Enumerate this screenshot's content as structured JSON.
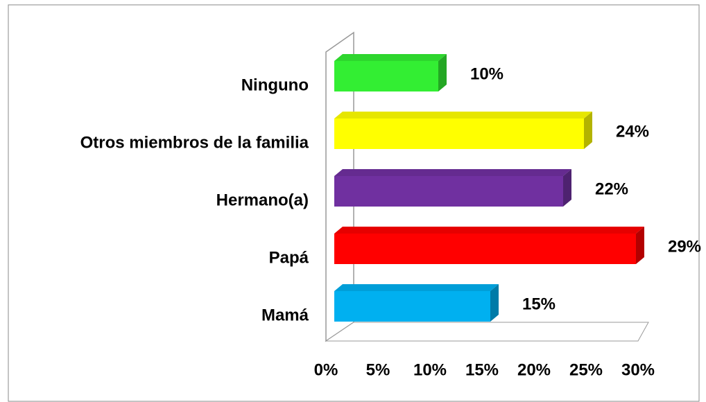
{
  "chart_data": {
    "type": "bar",
    "orientation": "horizontal",
    "categories": [
      "Ninguno",
      "Otros miembros de la familia",
      "Hermano(a)",
      "Papá",
      "Mamá"
    ],
    "values": [
      10,
      24,
      22,
      29,
      15
    ],
    "value_labels": [
      "10%",
      "24%",
      "22%",
      "29%",
      "15%"
    ],
    "colors": [
      "#33ee33",
      "#ffff00",
      "#7030a0",
      "#ff0000",
      "#00b0f0"
    ],
    "xlim": [
      0,
      30
    ],
    "xticks": [
      {
        "value": 0,
        "label": "0%"
      },
      {
        "value": 5,
        "label": "5%"
      },
      {
        "value": 10,
        "label": "10%"
      },
      {
        "value": 15,
        "label": "15%"
      },
      {
        "value": 20,
        "label": "20%"
      },
      {
        "value": 25,
        "label": "25%"
      },
      {
        "value": 30,
        "label": "30%"
      }
    ]
  }
}
